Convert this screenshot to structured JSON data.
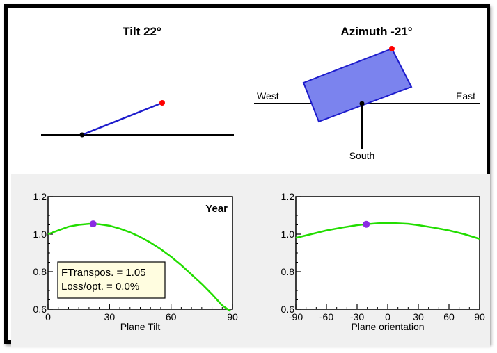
{
  "tilt_view": {
    "title": "Tilt 22°",
    "tilt_deg": 22
  },
  "azimuth_view": {
    "title": "Azimuth -21°",
    "azimuth_deg": -21,
    "west_label": "West",
    "east_label": "East",
    "south_label": "South"
  },
  "colors": {
    "plane_fill": "#7b83ee",
    "plane_stroke": "#1d1ccc",
    "marker_red": "#ff0000",
    "curve": "#22dd00",
    "optimum_dot": "#8a2be2",
    "info_box_bg": "#fffde0"
  },
  "chart_data": [
    {
      "type": "line",
      "title": "",
      "corner_label": "Year",
      "xlabel": "Plane Tilt",
      "ylabel": "",
      "xlim": [
        0,
        90
      ],
      "ylim": [
        0.6,
        1.2
      ],
      "xticks": [
        "0",
        "30",
        "60",
        "90"
      ],
      "yticks": [
        "0.6",
        "0.8",
        "1.0",
        "1.2"
      ],
      "xtick_values": [
        0,
        30,
        60,
        90
      ],
      "ytick_values": [
        0.6,
        0.8,
        1.0,
        1.2
      ],
      "series": [
        {
          "x": [
            0,
            5,
            10,
            15,
            20,
            22,
            25,
            30,
            35,
            40,
            45,
            50,
            55,
            60,
            65,
            70,
            75,
            80,
            85,
            89
          ],
          "y": [
            1.0,
            1.02,
            1.04,
            1.05,
            1.055,
            1.055,
            1.053,
            1.045,
            1.03,
            1.01,
            0.985,
            0.955,
            0.92,
            0.88,
            0.835,
            0.785,
            0.735,
            0.68,
            0.62,
            0.59
          ]
        }
      ],
      "marker": {
        "x": 22,
        "y": 1.055
      },
      "info_lines": [
        "FTranspos. = 1.05",
        "Loss/opt. = 0.0%"
      ]
    },
    {
      "type": "line",
      "title": "",
      "xlabel": "Plane orientation",
      "ylabel": "",
      "xlim": [
        -90,
        90
      ],
      "ylim": [
        0.6,
        1.2
      ],
      "xticks": [
        "-90",
        "-60",
        "-30",
        "0",
        "30",
        "60",
        "90"
      ],
      "yticks": [
        "0.6",
        "0.8",
        "1.0",
        "1.2"
      ],
      "xtick_values": [
        -90,
        -60,
        -30,
        0,
        30,
        60,
        90
      ],
      "ytick_values": [
        0.6,
        0.8,
        1.0,
        1.2
      ],
      "series": [
        {
          "x": [
            -90,
            -75,
            -60,
            -45,
            -30,
            -21,
            -10,
            0,
            10,
            20,
            30,
            45,
            60,
            75,
            90
          ],
          "y": [
            0.98,
            1.0,
            1.02,
            1.035,
            1.048,
            1.053,
            1.058,
            1.06,
            1.058,
            1.055,
            1.048,
            1.035,
            1.02,
            1.0,
            0.975
          ]
        }
      ],
      "marker": {
        "x": -21,
        "y": 1.053
      }
    }
  ]
}
